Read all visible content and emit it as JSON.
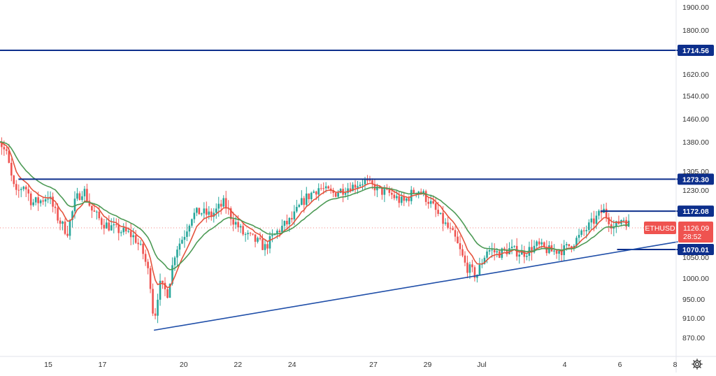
{
  "chart_data": {
    "type": "candlestick",
    "symbol": "ETHUSD",
    "last_price": "1126.09",
    "countdown": "28:52",
    "y_ticks": [
      {
        "v": 870,
        "label": "870.00"
      },
      {
        "v": 910,
        "label": "910.00"
      },
      {
        "v": 950,
        "label": "950.00"
      },
      {
        "v": 1000,
        "label": "1000.00"
      },
      {
        "v": 1050,
        "label": "1050.00"
      },
      {
        "v": 1230,
        "label": "1230.00"
      },
      {
        "v": 1305,
        "label": "1305.00"
      },
      {
        "v": 1380,
        "label": "1380.00"
      },
      {
        "v": 1460,
        "label": "1460.00"
      },
      {
        "v": 1540,
        "label": "1540.00"
      },
      {
        "v": 1620,
        "label": "1620.00"
      },
      {
        "v": 1800,
        "label": "1800.00"
      },
      {
        "v": 1900,
        "label": "1900.00"
      }
    ],
    "x_ticks": [
      {
        "t": 0,
        "label": "15"
      },
      {
        "t": 2,
        "label": "17"
      },
      {
        "t": 5,
        "label": "20"
      },
      {
        "t": 7,
        "label": "22"
      },
      {
        "t": 9,
        "label": "24"
      },
      {
        "t": 12,
        "label": "27"
      },
      {
        "t": 14,
        "label": "29"
      },
      {
        "t": 16,
        "label": "Jul"
      },
      {
        "t": 19,
        "label": "4"
      },
      {
        "t": 21,
        "label": "6"
      },
      {
        "t": 23,
        "label": "8"
      }
    ],
    "horizontal_levels": [
      {
        "value": 1714.56,
        "label": "1714.56",
        "t_start": -2,
        "t_end": 23.1
      },
      {
        "value": 1273.3,
        "label": "1273.30",
        "t_start": -1.1,
        "t_end": 23.1
      },
      {
        "value": 1172.08,
        "label": "1172.08",
        "t_start": 20.3,
        "t_end": 23.1
      },
      {
        "value": 1070.01,
        "label": "1070.01",
        "t_start": 20.9,
        "t_end": 23.1
      }
    ],
    "trendline": {
      "t1": 3.9,
      "v1": 885,
      "t2": 23.1,
      "v2": 1090
    },
    "price_path": [
      [
        -1.9,
        1400
      ],
      [
        -1.5,
        1340
      ],
      [
        -1.2,
        1215
      ],
      [
        -0.9,
        1250
      ],
      [
        -0.6,
        1195
      ],
      [
        -0.3,
        1200
      ],
      [
        0,
        1215
      ],
      [
        0.3,
        1160
      ],
      [
        0.5,
        1135
      ],
      [
        0.7,
        1115
      ],
      [
        1.0,
        1200
      ],
      [
        1.3,
        1235
      ],
      [
        1.6,
        1175
      ],
      [
        2.0,
        1140
      ],
      [
        2.4,
        1125
      ],
      [
        2.8,
        1115
      ],
      [
        3.0,
        1110
      ],
      [
        3.2,
        1100
      ],
      [
        3.5,
        1060
      ],
      [
        3.75,
        1000
      ],
      [
        3.9,
        900
      ],
      [
        4.1,
        985
      ],
      [
        4.4,
        965
      ],
      [
        4.7,
        1070
      ],
      [
        5.0,
        1105
      ],
      [
        5.3,
        1160
      ],
      [
        5.6,
        1170
      ],
      [
        6.0,
        1160
      ],
      [
        6.5,
        1195
      ],
      [
        6.8,
        1150
      ],
      [
        7.2,
        1110
      ],
      [
        7.6,
        1095
      ],
      [
        8.0,
        1075
      ],
      [
        8.5,
        1120
      ],
      [
        9.0,
        1150
      ],
      [
        9.4,
        1200
      ],
      [
        10.0,
        1240
      ],
      [
        10.5,
        1220
      ],
      [
        11.2,
        1245
      ],
      [
        11.7,
        1265
      ],
      [
        12.2,
        1230
      ],
      [
        12.6,
        1220
      ],
      [
        13.1,
        1195
      ],
      [
        13.6,
        1235
      ],
      [
        14.0,
        1205
      ],
      [
        14.5,
        1150
      ],
      [
        15.0,
        1100
      ],
      [
        15.4,
        1030
      ],
      [
        15.8,
        1005
      ],
      [
        16.2,
        1070
      ],
      [
        16.6,
        1060
      ],
      [
        17.0,
        1070
      ],
      [
        17.5,
        1060
      ],
      [
        18.0,
        1080
      ],
      [
        18.5,
        1065
      ],
      [
        19.0,
        1070
      ],
      [
        19.5,
        1100
      ],
      [
        20.0,
        1140
      ],
      [
        20.4,
        1175
      ],
      [
        20.8,
        1125
      ],
      [
        21.1,
        1155
      ],
      [
        21.4,
        1130
      ]
    ],
    "ma_fast_color": "#e5533d",
    "ma_slow_color": "#4c9a55",
    "level_color": "#0d2f8c",
    "trendline_color": "#1f4ea8",
    "bull_color": "#26a69a",
    "bear_color": "#ef5350",
    "label_bg_color": "#0d2f8c",
    "price_tag_color": "#ef5350"
  },
  "toolbar": {
    "settings_icon": "gear-icon"
  }
}
